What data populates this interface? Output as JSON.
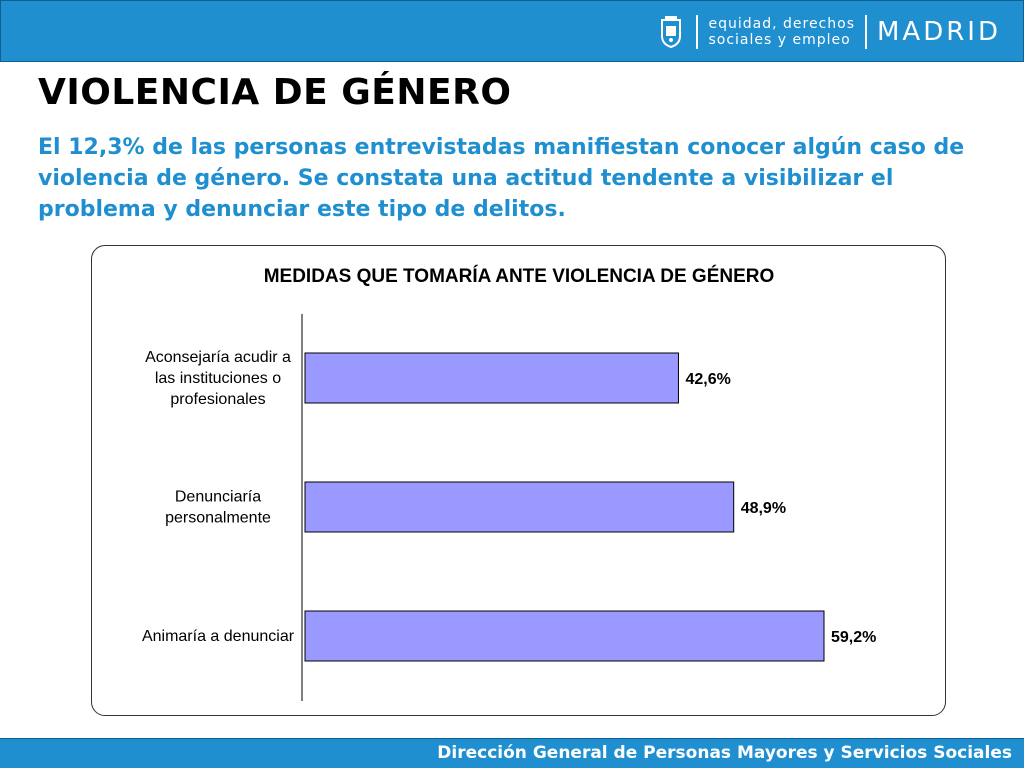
{
  "header": {
    "department_line1": "equidad, derechos",
    "department_line2": "sociales y empleo",
    "city": "MADRID",
    "crest_icon": "madrid-crest-icon"
  },
  "page": {
    "title": "VIOLENCIA DE GÉNERO",
    "subtitle": "El 12,3% de las personas entrevistadas manifiestan conocer algún caso de violencia de género. Se constata una actitud tendente a visibilizar el problema y denunciar este tipo de delitos."
  },
  "footer": {
    "text": "Dirección General de Personas Mayores y Servicios Sociales"
  },
  "colors": {
    "brand_blue": "#1f8fd0",
    "bar_fill": "#9999ff"
  },
  "chart_data": {
    "type": "bar",
    "orientation": "horizontal",
    "title": "MEDIDAS QUE TOMARÍA ANTE VIOLENCIA DE GÉNERO",
    "categories": [
      [
        "Aconsejaría acudir a",
        "las instituciones o",
        "profesionales"
      ],
      [
        "Denunciaría",
        "personalmente"
      ],
      [
        "Animaría a denunciar"
      ]
    ],
    "values": [
      42.6,
      48.9,
      59.2
    ],
    "value_labels": [
      "42,6%",
      "48,9%",
      "59,2%"
    ],
    "xlim": [
      0,
      70
    ],
    "grid": false,
    "legend": "none"
  }
}
